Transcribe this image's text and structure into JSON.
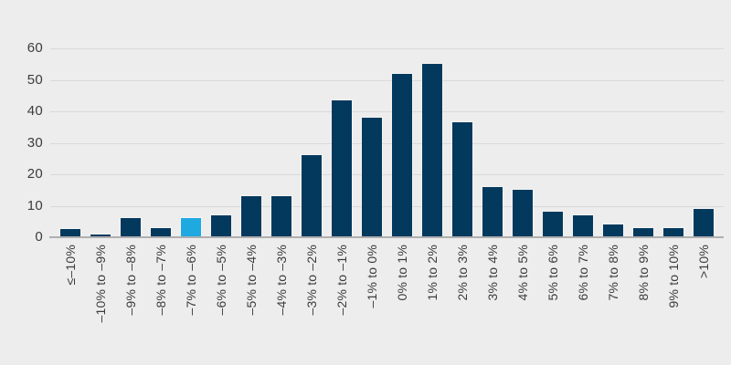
{
  "chart_data": {
    "type": "bar",
    "title": "",
    "xlabel": "",
    "ylabel": "",
    "categories": [
      "≤–10%",
      "–10% to –9%",
      "–9% to –8%",
      "–8% to –7%",
      "–7% to –6%",
      "–6% to –5%",
      "–5% to –4%",
      "–4% to –3%",
      "–3% to –2%",
      "–2% to –1%",
      "–1% to 0%",
      "0% to 1%",
      "1% to 2%",
      "2% to 3%",
      "3% to 4%",
      "4% to 5%",
      "5% to 6%",
      "6% to 7%",
      "7% to 8%",
      "8% to 9%",
      "9% to 10%",
      ">10%"
    ],
    "values": [
      2.5,
      1,
      6,
      3,
      6,
      7,
      13,
      13,
      26,
      43.5,
      38,
      52,
      55,
      36.5,
      16,
      15,
      8,
      7,
      4,
      3,
      3,
      9
    ],
    "highlight_index": 4,
    "y_ticks": [
      0,
      10,
      20,
      30,
      40,
      50,
      60
    ],
    "ylim": [
      0,
      60
    ],
    "grid": "horizontal",
    "legend": "none",
    "colors": {
      "bar": "#04395E",
      "highlight": "#1FA9E1",
      "background": "#EDEDED",
      "gridline": "#D9D9D9",
      "axis_line": "#AFAFAF",
      "text": "#3C3C3C"
    }
  }
}
